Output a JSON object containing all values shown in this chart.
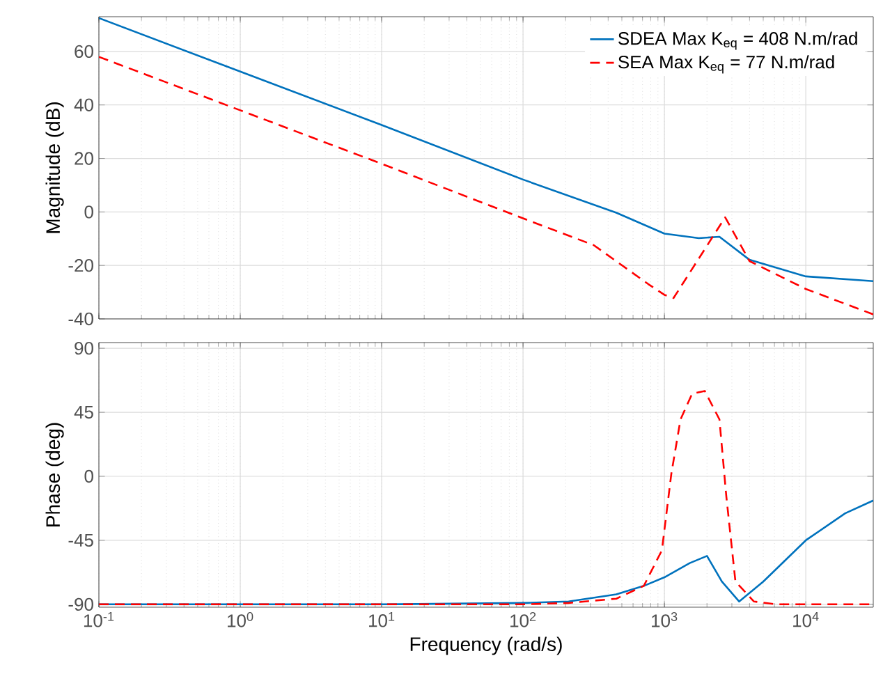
{
  "chart_data": [
    {
      "type": "line",
      "ylabel": "Magnitude (dB)",
      "xlim": [
        0.1,
        30000
      ],
      "ylim": [
        -40,
        73
      ],
      "log": "x",
      "grid": true,
      "legend": "top right",
      "tick_labels": "y",
      "xticks": [
        {
          "value": 0.1,
          "label": null
        },
        {
          "value": 1,
          "label": null
        },
        {
          "value": 10,
          "label": null
        },
        {
          "value": 100,
          "label": null
        },
        {
          "value": 1000,
          "label": null
        },
        {
          "value": 10000,
          "label": null
        }
      ],
      "yticks": [
        -40,
        -20,
        0,
        20,
        40,
        60
      ],
      "series": [
        {
          "name": "SDEA Max K$_{eq}$  = 408 N.m/rad",
          "color": "#0072bd",
          "line_style": "solid",
          "x": [
            0.1,
            1,
            10,
            100,
            457,
            1000,
            1750,
            2450,
            4000,
            10000,
            30000
          ],
          "values": [
            72.5,
            52.5,
            32.5,
            12.1,
            -0.3,
            -8.1,
            -9.8,
            -9.3,
            -17.9,
            -24.1,
            -25.9
          ]
        },
        {
          "name": "SEA Max K$_{eq}$  = 77 N.m/rad",
          "color": "#ff0000",
          "line_style": "dashed",
          "x": [
            0.1,
            1,
            10,
            100,
            316,
            770,
            1000,
            1160,
            2690,
            4000,
            10000,
            30000
          ],
          "values": [
            58,
            38,
            18,
            -2.4,
            -12.4,
            -27,
            -31,
            -32.2,
            -2,
            -18.4,
            -28.8,
            -38.3
          ]
        }
      ]
    },
    {
      "type": "line",
      "xlabel": "Frequency  (rad/s)",
      "ylabel": "Phase (deg)",
      "xlim": [
        0.1,
        30000
      ],
      "ylim": [
        -92,
        94
      ],
      "log": "x",
      "grid": true,
      "xticks": [
        {
          "value": 0.1,
          "label": "10$^{-1}$"
        },
        {
          "value": 1,
          "label": "10$^{0}$"
        },
        {
          "value": 10,
          "label": "10$^{1}$"
        },
        {
          "value": 100,
          "label": "10$^{2}$"
        },
        {
          "value": 1000,
          "label": "10$^{3}$"
        },
        {
          "value": 10000,
          "label": "10$^{4}$"
        }
      ],
      "yticks": [
        -90,
        -45,
        0,
        45,
        90
      ],
      "series": [
        {
          "color": "#0072bd",
          "line_style": "solid",
          "x": [
            0.1,
            10,
            100,
            210,
            457,
            715,
            1000,
            1510,
            2000,
            2550,
            3380,
            5000,
            10000,
            19000,
            30000
          ],
          "values": [
            -90,
            -90,
            -89,
            -88,
            -83,
            -77,
            -71,
            -61,
            -56,
            -74,
            -88,
            -74,
            -45,
            -26,
            -17
          ]
        },
        {
          "color": "#ff0000",
          "line_style": "dashed",
          "x": [
            0.1,
            100,
            210,
            457,
            715,
            960,
            1120,
            1300,
            1570,
            1930,
            2450,
            2740,
            3180,
            4300,
            6200,
            30000
          ],
          "values": [
            -90,
            -90,
            -89,
            -86,
            -77,
            -52,
            2,
            40,
            58,
            60,
            40,
            -14,
            -74,
            -88,
            -90,
            -90
          ]
        }
      ]
    }
  ]
}
